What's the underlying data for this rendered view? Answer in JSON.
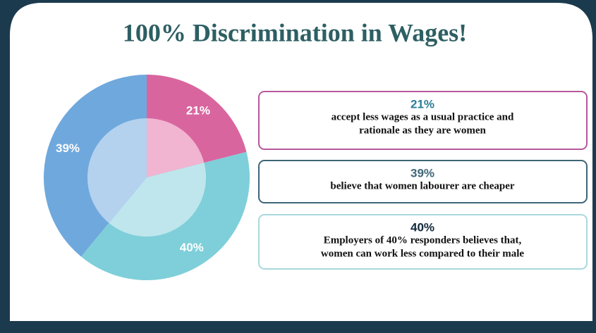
{
  "chart_data": {
    "type": "pie",
    "title": "100% Discrimination in Wages!",
    "values": [
      21,
      40,
      39
    ],
    "value_labels": [
      "21%",
      "40%",
      "39%"
    ],
    "colors": [
      "#d9659f",
      "#7ecfd9",
      "#6fa8dc"
    ],
    "inner_colors": [
      "#f1b4d1",
      "#bfe6ed",
      "#b4d2ee"
    ]
  },
  "callouts": [
    {
      "heading": "21%",
      "lines": [
        "accept less wages as a usual practice and",
        "rationale as they are women"
      ]
    },
    {
      "heading": "39%",
      "lines": [
        "believe that  women labourer are cheaper"
      ]
    },
    {
      "heading": "40%",
      "lines": [
        "Employers of 40% responders believes that,",
        "women can work less compared to their male"
      ]
    }
  ]
}
